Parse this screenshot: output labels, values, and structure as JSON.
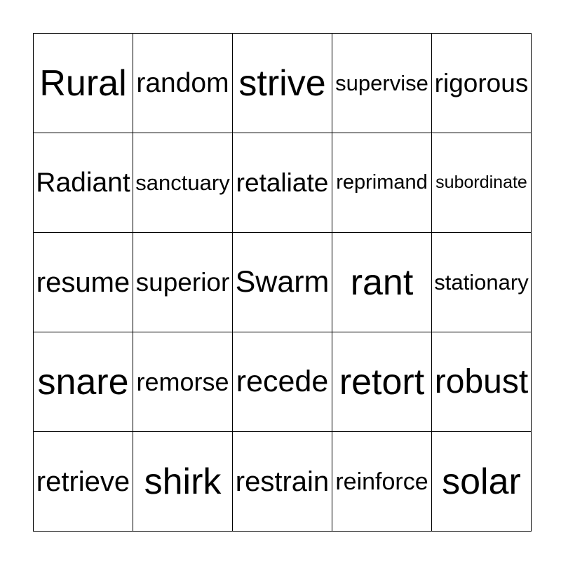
{
  "card": {
    "rows": [
      [
        "Rural",
        "random",
        "strive",
        "supervise",
        "rigorous"
      ],
      [
        "Radiant",
        "sanctuary",
        "retaliate",
        "reprimand",
        "subordinate"
      ],
      [
        "resume",
        "superior",
        "Swarm",
        "rant",
        "stationary"
      ],
      [
        "snare",
        "remorse",
        "recede",
        "retort",
        "robust"
      ],
      [
        "retrieve",
        "shirk",
        "restrain",
        "reinforce",
        "solar"
      ]
    ]
  }
}
